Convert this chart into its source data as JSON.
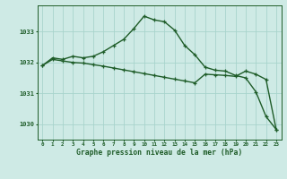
{
  "hours": [
    0,
    1,
    2,
    3,
    4,
    5,
    6,
    7,
    8,
    9,
    10,
    11,
    12,
    13,
    14,
    15,
    16,
    17,
    18,
    19,
    20,
    21,
    22,
    23
  ],
  "series1": [
    1031.9,
    1032.15,
    1032.1,
    1032.2,
    1032.15,
    1032.2,
    1032.35,
    1032.55,
    1032.75,
    1033.1,
    1033.5,
    1033.38,
    1033.32,
    1033.05,
    1032.55,
    1032.25,
    1031.85,
    1031.75,
    1031.72,
    1031.58,
    1031.5,
    1031.05,
    1030.25,
    1029.83
  ],
  "series2": [
    1031.9,
    1032.1,
    1032.05,
    1032.0,
    1031.98,
    1031.93,
    1031.88,
    1031.82,
    1031.76,
    1031.7,
    1031.64,
    1031.58,
    1031.52,
    1031.46,
    1031.4,
    1031.34,
    1031.62,
    1031.6,
    1031.58,
    1031.55,
    1031.72,
    1031.62,
    1031.45,
    1029.83
  ],
  "bg_color": "#ceeae5",
  "grid_color": "#a8d4cc",
  "line_color": "#1e5c28",
  "xlabel": "Graphe pression niveau de la mer (hPa)",
  "ylim": [
    1029.5,
    1033.85
  ],
  "yticks": [
    1030,
    1031,
    1032,
    1033
  ],
  "marker_size": 3.5,
  "line_width": 1.0
}
